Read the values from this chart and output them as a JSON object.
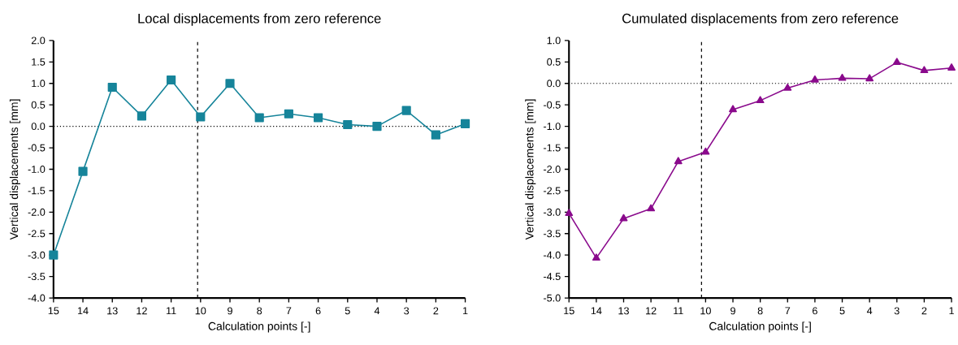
{
  "chart_data": [
    {
      "type": "line",
      "title": "Local displacements from zero reference",
      "xlabel": "Calculation points [-]",
      "ylabel": "Vertical displacements [mm]",
      "x": [
        15,
        14,
        13,
        12,
        11,
        10,
        9,
        8,
        7,
        6,
        5,
        4,
        3,
        2,
        1
      ],
      "series": [
        {
          "color": "#16849a",
          "values": [
            -3.0,
            -1.05,
            0.91,
            0.24,
            1.08,
            0.22,
            1.0,
            0.2,
            0.29,
            0.2,
            0.04,
            0.0,
            0.37,
            -0.2,
            0.06
          ]
        }
      ],
      "marker": "square",
      "line_style": "solid",
      "xlim": [
        15,
        1
      ],
      "xticks": [
        15,
        14,
        13,
        12,
        11,
        10,
        9,
        8,
        7,
        6,
        5,
        4,
        3,
        2,
        1
      ],
      "ylim": [
        -4,
        2
      ],
      "yticks": [
        {
          "value": -4,
          "label": "-4.0"
        },
        {
          "value": -3.5,
          "label": "-3.5"
        },
        {
          "value": -3,
          "label": "-3.0"
        },
        {
          "value": -2.5,
          "label": "-2.5"
        },
        {
          "value": -2,
          "label": "-2.0"
        },
        {
          "value": -1.5,
          "label": "-1.5"
        },
        {
          "value": -1,
          "label": "-1.0"
        },
        {
          "value": -0.5,
          "label": "-0.5"
        },
        {
          "value": 0,
          "label": "0.0"
        },
        {
          "value": 0.5,
          "label": "0.5"
        },
        {
          "value": 1,
          "label": "1.0"
        },
        {
          "value": 1.5,
          "label": "1.5"
        },
        {
          "value": 2,
          "label": "2.0"
        }
      ],
      "ref_lines": [
        {
          "axis": "x",
          "value": 10.1,
          "line_style": "dashed"
        },
        {
          "axis": "y",
          "value": 0,
          "line_style": "dotted"
        }
      ]
    },
    {
      "type": "line",
      "title": "Cumulated displacements from zero reference",
      "xlabel": "Calculation points [-]",
      "ylabel": "Vertical displacements [mm]",
      "x": [
        15,
        14,
        13,
        12,
        11,
        10,
        9,
        8,
        7,
        6,
        5,
        4,
        3,
        2,
        1
      ],
      "series": [
        {
          "color": "#8a0a8c",
          "values": [
            -3.03,
            -4.07,
            -3.15,
            -2.92,
            -1.82,
            -1.6,
            -0.61,
            -0.4,
            -0.11,
            0.08,
            0.12,
            0.11,
            0.49,
            0.3,
            0.36
          ]
        }
      ],
      "marker": "triangle",
      "line_style": "solid",
      "xlim": [
        15,
        1
      ],
      "xticks": [
        15,
        14,
        13,
        12,
        11,
        10,
        9,
        8,
        7,
        6,
        5,
        4,
        3,
        2,
        1
      ],
      "ylim": [
        -5,
        1
      ],
      "yticks": [
        {
          "value": -5,
          "label": "-5.0"
        },
        {
          "value": -4.5,
          "label": "-4.5"
        },
        {
          "value": -4,
          "label": "-4.0"
        },
        {
          "value": -3.5,
          "label": "-3.5"
        },
        {
          "value": -3,
          "label": "-3.0"
        },
        {
          "value": -2.5,
          "label": "-2.5"
        },
        {
          "value": -2,
          "label": "-2.0"
        },
        {
          "value": -1.5,
          "label": "-1.5"
        },
        {
          "value": -1,
          "label": "-1.0"
        },
        {
          "value": -0.5,
          "label": "-0.5"
        },
        {
          "value": 0,
          "label": "0.0"
        },
        {
          "value": 0.5,
          "label": "0.5"
        },
        {
          "value": 1,
          "label": "1.0"
        }
      ],
      "ref_lines": [
        {
          "axis": "x",
          "value": 10.15,
          "line_style": "dashed"
        },
        {
          "axis": "y",
          "value": 0,
          "line_style": "dotted"
        }
      ]
    }
  ]
}
